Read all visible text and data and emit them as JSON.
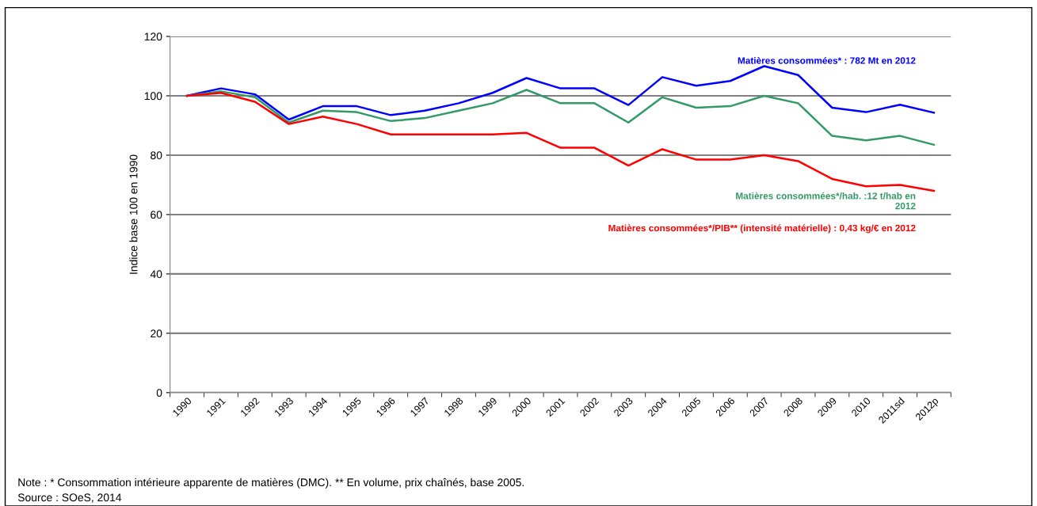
{
  "chart_data": {
    "type": "line",
    "ylabel": "Indice base 100 en 1990",
    "categories": [
      "1990",
      "1991",
      "1992",
      "1993",
      "1994",
      "1995",
      "1996",
      "1997",
      "1998",
      "1999",
      "2000",
      "2001",
      "2002",
      "2003",
      "2004",
      "2005",
      "2006",
      "2007",
      "2008",
      "2009",
      "2010",
      "2011sd",
      "2012p"
    ],
    "series": [
      {
        "color": "#0000ff",
        "values": [
          100,
          102.5,
          100.5,
          92,
          96.5,
          96.5,
          93.5,
          95,
          97.5,
          101,
          106,
          102.5,
          102.5,
          96.9,
          106.3,
          103.4,
          105,
          110,
          107,
          96,
          94.5,
          97,
          94.3
        ]
      },
      {
        "color": "#339966",
        "values": [
          100,
          101.5,
          99.5,
          91,
          95,
          94.5,
          91.5,
          92.5,
          95,
          97.5,
          102,
          97.5,
          97.5,
          91,
          99.5,
          96,
          96.5,
          100,
          97.5,
          86.5,
          85,
          86.5,
          83.5
        ]
      },
      {
        "color": "#ff0000",
        "values": [
          100,
          101,
          98,
          90.5,
          93,
          90.5,
          87,
          87,
          87,
          87,
          87.5,
          82.5,
          82.5,
          76.5,
          82,
          78.5,
          78.5,
          80,
          78,
          72,
          69.5,
          70,
          68
        ]
      }
    ],
    "ylim": [
      0,
      120
    ],
    "yticks": [
      0,
      20,
      40,
      60,
      80,
      100,
      120
    ],
    "grid": "y",
    "marker": "none",
    "line_style": "solid",
    "annotations": [
      "Matières consommées* : 782 Mt en 2012",
      "Matières consommées*/hab. :12 t/hab en\n2012",
      "Matières consommées*/PIB** (intensité matérielle) : 0,43 kg/€ en 2012",
      "Note : * Consommation intérieure apparente de matières (DMC). ** En volume, prix chaînés, base 2005.",
      "Source : SOeS, 2014"
    ]
  }
}
